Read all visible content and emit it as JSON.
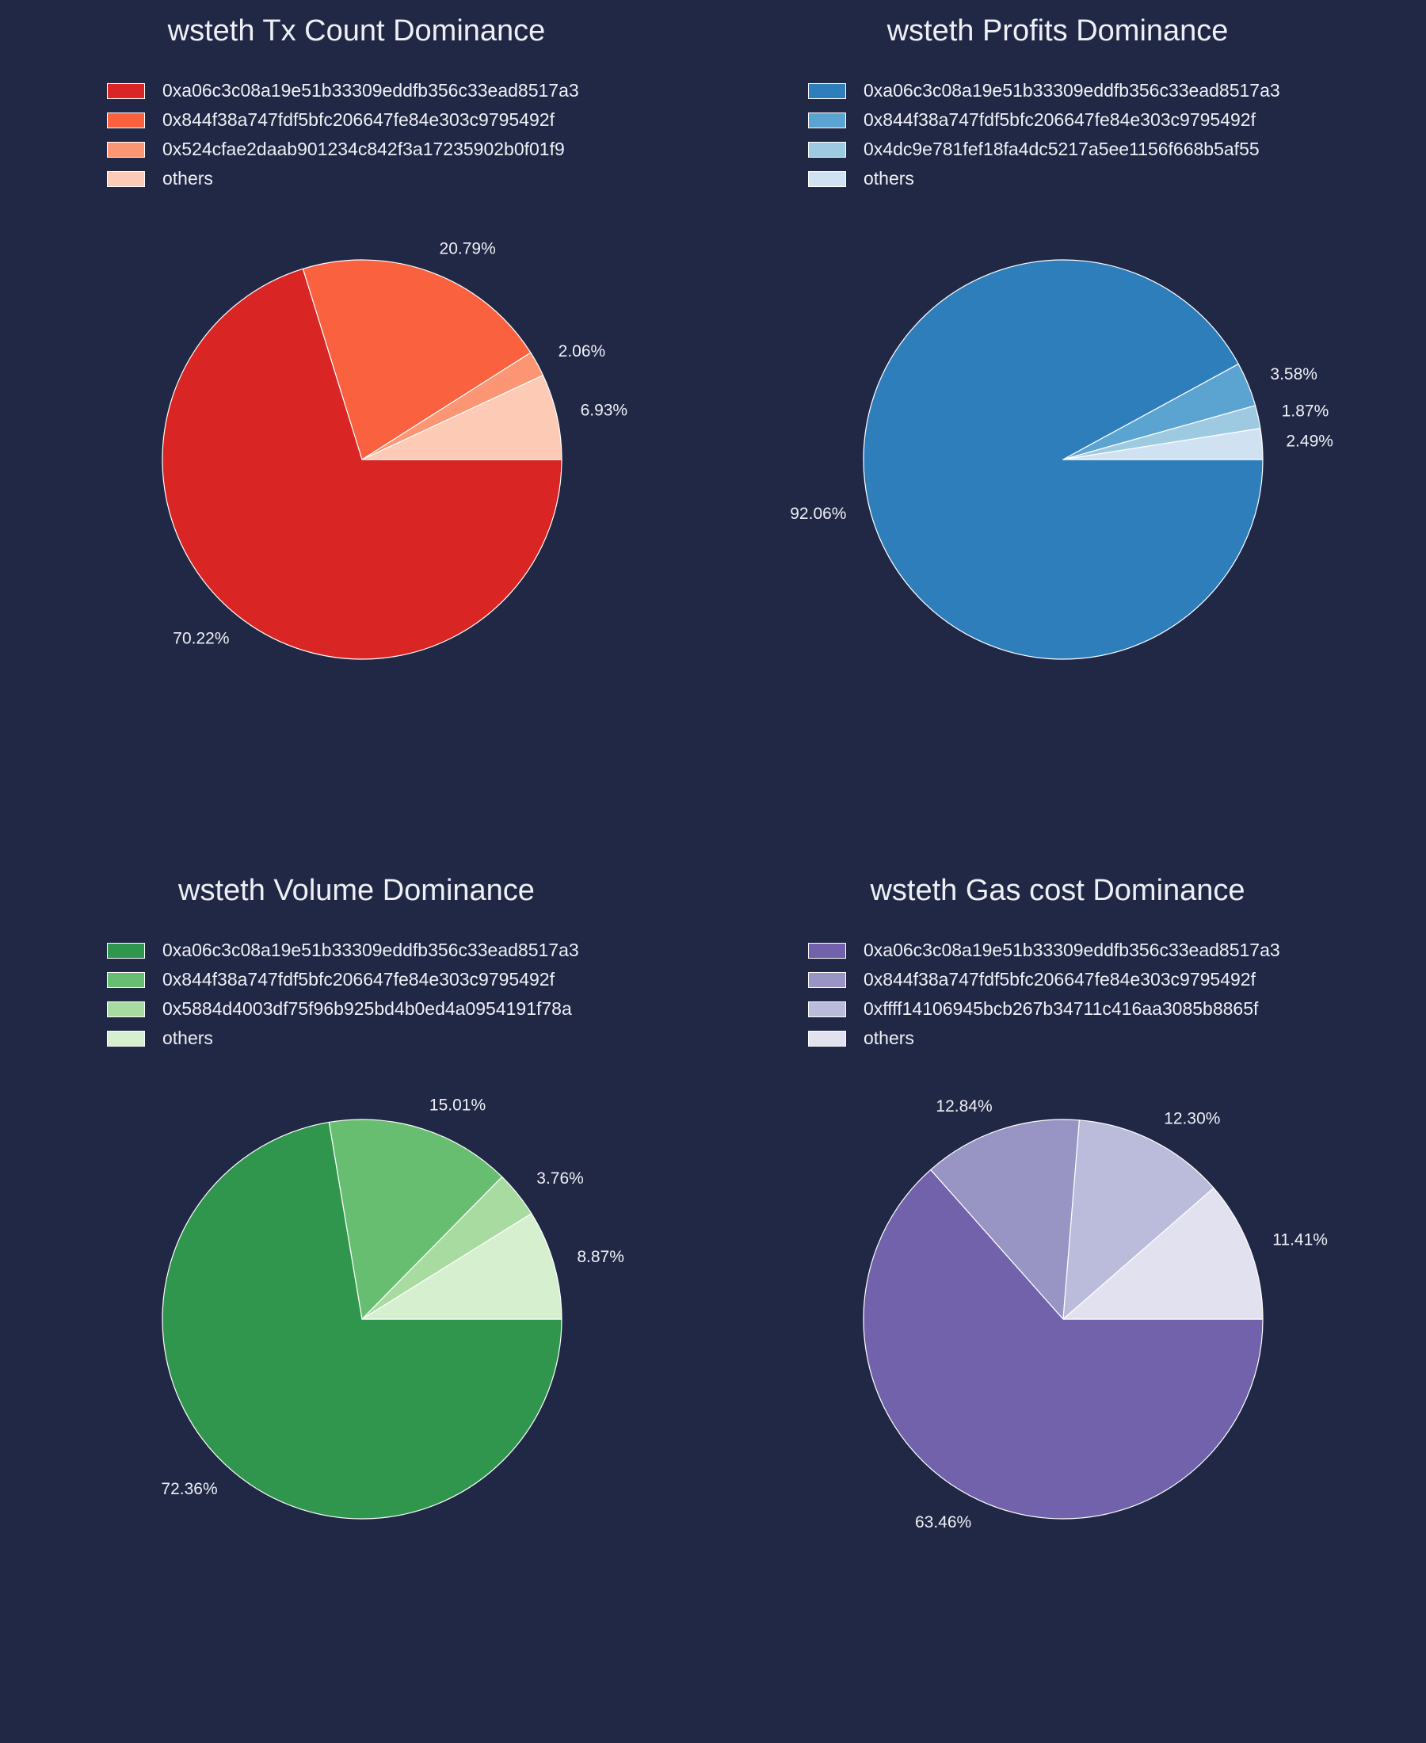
{
  "chart_data": [
    {
      "type": "pie",
      "title": "wsteth Tx Count Dominance",
      "labels": [
        "0xa06c3c08a19e51b33309eddfb356c33ead8517a3",
        "0x844f38a747fdf5bfc206647fe84e303c9795492f",
        "0x524cfae2daab901234c842f3a17235902b0f01f9",
        "others"
      ],
      "values": [
        70.22,
        20.79,
        2.06,
        6.93
      ],
      "value_labels": [
        "70.22%",
        "20.79%",
        "2.06%",
        "6.93%"
      ],
      "colors": [
        "#d92523",
        "#f9613f",
        "#fc9574",
        "#fdcbb5"
      ],
      "legend": "top-left"
    },
    {
      "type": "pie",
      "title": "wsteth Profits Dominance",
      "labels": [
        "0xa06c3c08a19e51b33309eddfb356c33ead8517a3",
        "0x844f38a747fdf5bfc206647fe84e303c9795492f",
        "0x4dc9e781fef18fa4dc5217a5ee1156f668b5af55",
        "others"
      ],
      "values": [
        92.06,
        3.58,
        1.87,
        2.49
      ],
      "value_labels": [
        "92.06%",
        "3.58%",
        "1.87%",
        "2.49%"
      ],
      "colors": [
        "#2e7ebc",
        "#5ba3d0",
        "#9ecae1",
        "#d0e2f2"
      ],
      "legend": "top-left"
    },
    {
      "type": "pie",
      "title": "wsteth Volume Dominance",
      "labels": [
        "0xa06c3c08a19e51b33309eddfb356c33ead8517a3",
        "0x844f38a747fdf5bfc206647fe84e303c9795492f",
        "0x5884d4003df75f96b925bd4b0ed4a0954191f78a",
        "others"
      ],
      "values": [
        72.36,
        15.01,
        3.76,
        8.87
      ],
      "value_labels": [
        "72.36%",
        "15.01%",
        "3.76%",
        "8.87%"
      ],
      "colors": [
        "#31964d",
        "#68be70",
        "#a7dba0",
        "#d5efcf"
      ],
      "legend": "top-left"
    },
    {
      "type": "pie",
      "title": "wsteth Gas cost Dominance",
      "labels": [
        "0xa06c3c08a19e51b33309eddfb356c33ead8517a3",
        "0x844f38a747fdf5bfc206647fe84e303c9795492f",
        "0xffff14106945bcb267b34711c416aa3085b8865f",
        "others"
      ],
      "values": [
        63.46,
        12.84,
        12.3,
        11.41
      ],
      "value_labels": [
        "63.46%",
        "12.84%",
        "12.30%",
        "11.41%"
      ],
      "colors": [
        "#7262ab",
        "#9894c4",
        "#bbbcdc",
        "#e2e1ef"
      ],
      "legend": "top-left"
    }
  ]
}
